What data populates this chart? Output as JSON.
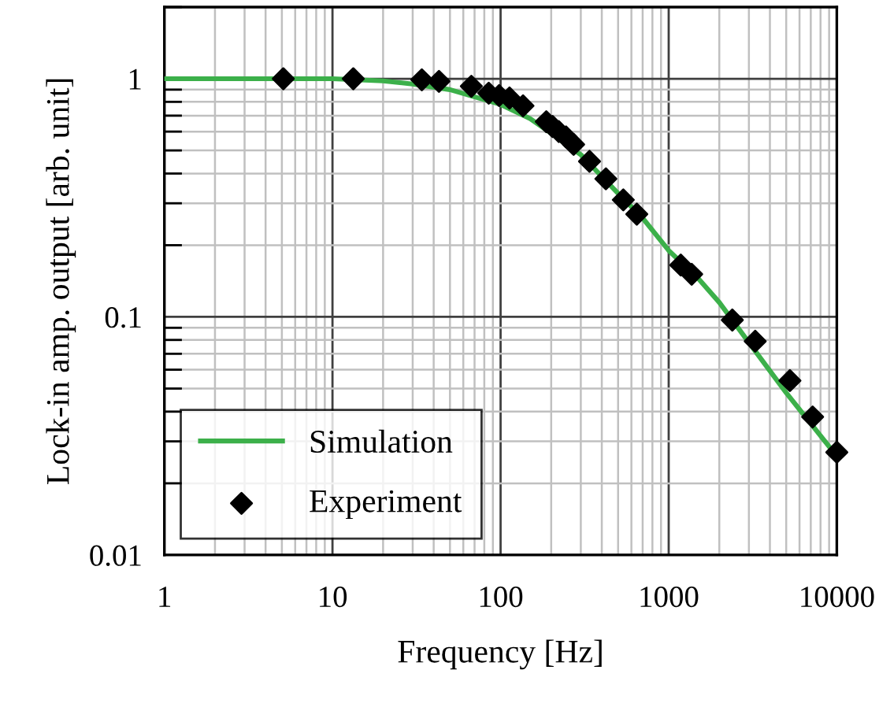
{
  "chart_data": {
    "type": "scatter",
    "xlabel": "Frequency [Hz]",
    "ylabel": "Lock-in amp. output [arb. unit]",
    "log": "xy",
    "grid": true,
    "legend": "bottom left",
    "xlim": [
      1,
      10000
    ],
    "xticks": [
      1,
      10,
      100,
      1000,
      10000
    ],
    "ylim": [
      0.01,
      2
    ],
    "yticks": [
      0.01,
      0.1,
      1
    ],
    "series": [
      {
        "name": "Simulation",
        "type": "line",
        "color": "#3cb04a",
        "marker": "none",
        "line_style": "solid",
        "x": [
          1,
          10,
          20,
          30,
          50,
          100,
          150,
          200,
          300,
          500,
          700,
          1000,
          1500,
          2000,
          3000,
          5000,
          10000
        ],
        "values": [
          1.0,
          1.0,
          0.98,
          0.95,
          0.9,
          0.78,
          0.68,
          0.59,
          0.48,
          0.33,
          0.26,
          0.19,
          0.145,
          0.115,
          0.078,
          0.048,
          0.026
        ]
      },
      {
        "name": "Experiment",
        "color": "#000000",
        "marker": "diamond",
        "x": [
          5.1,
          13.3,
          34,
          43,
          67,
          85,
          98,
          113,
          136,
          187,
          204,
          222,
          245,
          272,
          338,
          423,
          537,
          646,
          1180,
          1370,
          2390,
          3270,
          5260,
          7180,
          10000
        ],
        "values": [
          1.0,
          1.0,
          0.99,
          0.975,
          0.93,
          0.87,
          0.85,
          0.83,
          0.77,
          0.66,
          0.63,
          0.6,
          0.57,
          0.53,
          0.45,
          0.38,
          0.31,
          0.27,
          0.165,
          0.151,
          0.097,
          0.079,
          0.054,
          0.038,
          0.027
        ]
      }
    ]
  }
}
